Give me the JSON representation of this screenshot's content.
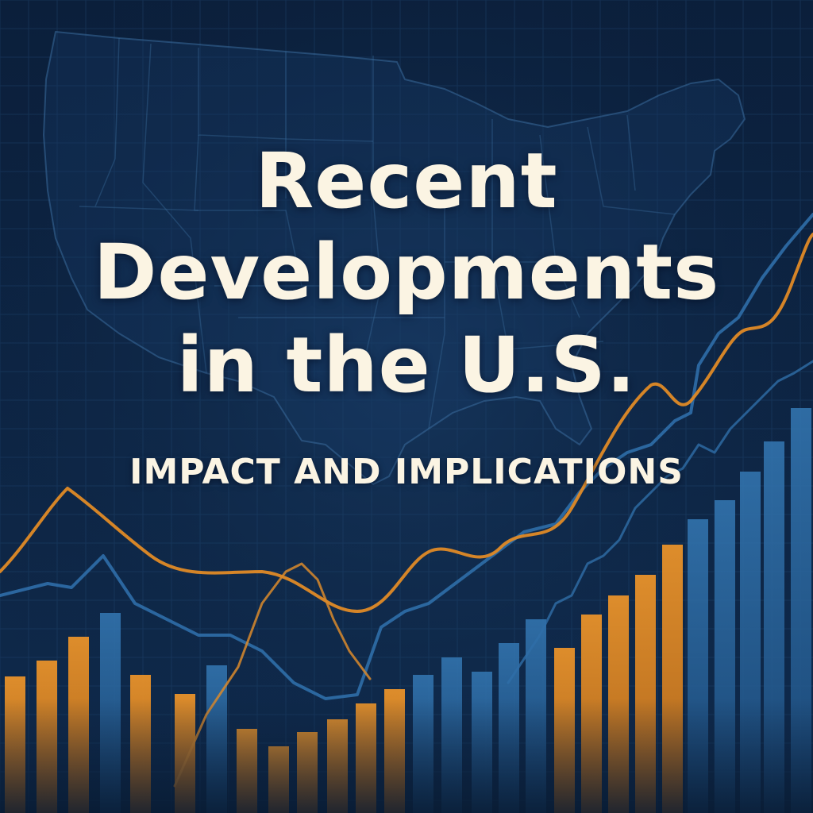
{
  "title": {
    "line1": "Recent",
    "line2": "Developments",
    "line3": "in the U.S."
  },
  "subtitle": "IMPACT AND IMPLICATIONS",
  "colors": {
    "background_top": "#0b1f3b",
    "background_bottom": "#0f2a4c",
    "orange": "#e08a26",
    "blue": "#2c6aa1",
    "text": "#fbf4e3",
    "map_stroke": "#2e5f8e"
  },
  "decoration": {
    "map": "united-states-outline",
    "chart": "decorative bars and trend lines (no values printed)"
  }
}
